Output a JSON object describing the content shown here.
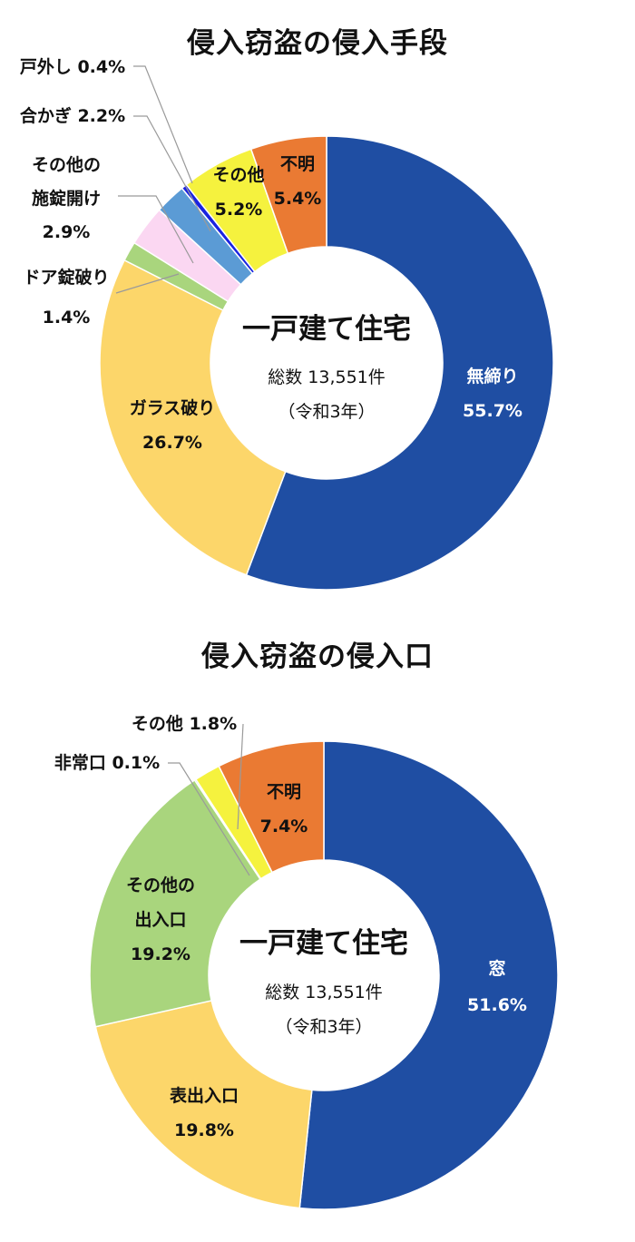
{
  "chart_data": [
    {
      "type": "pie",
      "title": "侵入窃盗の侵入手段",
      "center": {
        "main": "一戸建て住宅",
        "total": "総数 13,551件",
        "year": "（令和3年）"
      },
      "colors": [
        "#1f4ea3",
        "#fcd66a",
        "#a9d57d",
        "#fbd7f2",
        "#5b9bd5",
        "#1a23e0",
        "#f5f23e",
        "#ea7a33"
      ],
      "slices": [
        {
          "label": "無締り",
          "pct": "55.7%",
          "value": 55.7
        },
        {
          "label": "ガラス破り",
          "pct": "26.7%",
          "value": 26.7
        },
        {
          "label": "ドア錠破り",
          "pct": "1.4%",
          "value": 1.4
        },
        {
          "label": "その他の施錠開け",
          "label_lines": [
            "その他の",
            "施錠開け"
          ],
          "pct": "2.9%",
          "value": 2.9
        },
        {
          "label": "合かぎ",
          "pct": "2.2%",
          "value": 2.2
        },
        {
          "label": "戸外し",
          "pct": "0.4%",
          "value": 0.4
        },
        {
          "label": "その他",
          "pct": "5.2%",
          "value": 5.2
        },
        {
          "label": "不明",
          "pct": "5.4%",
          "value": 5.4
        }
      ]
    },
    {
      "type": "pie",
      "title": "侵入窃盗の侵入口",
      "center": {
        "main": "一戸建て住宅",
        "total": "総数 13,551件",
        "year": "（令和3年）"
      },
      "colors": [
        "#1f4ea3",
        "#fcd66a",
        "#a9d57d",
        "#5b9bd5",
        "#f5f23e",
        "#ea7a33"
      ],
      "slices": [
        {
          "label": "窓",
          "pct": "51.6%",
          "value": 51.6
        },
        {
          "label": "表出入口",
          "pct": "19.8%",
          "value": 19.8
        },
        {
          "label": "その他の出入口",
          "label_lines": [
            "その他の",
            "出入口"
          ],
          "pct": "19.2%",
          "value": 19.2
        },
        {
          "label": "非常口",
          "pct": "0.1%",
          "value": 0.1
        },
        {
          "label": "その他",
          "pct": "1.8%",
          "value": 1.8
        },
        {
          "label": "不明",
          "pct": "7.4%",
          "value": 7.4
        }
      ]
    }
  ]
}
